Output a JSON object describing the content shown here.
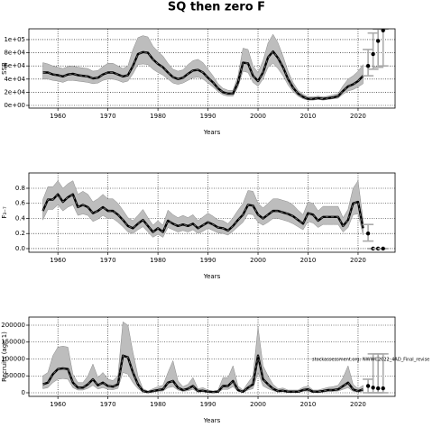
{
  "title": "SQ then zero F",
  "chart_data": [
    {
      "type": "line",
      "ylabel": "SSB",
      "xlabel": "Years",
      "xlim": [
        1954.2,
        2027.4
      ],
      "xticks": [
        1960,
        1970,
        1980,
        1990,
        2000,
        2010,
        2020
      ],
      "ylim": [
        -4100,
        116400
      ],
      "yticks": [
        {
          "value": 0,
          "label": "0e+00"
        },
        {
          "value": 20000,
          "label": "2e+04"
        },
        {
          "value": 40000,
          "label": "4e+04"
        },
        {
          "value": 60000,
          "label": "6e+04"
        },
        {
          "value": 80000,
          "label": "8e+04"
        },
        {
          "value": 100000,
          "label": "1e+05"
        }
      ],
      "grid": true,
      "color": "#000000",
      "band_color": "#bdbdbd",
      "x": [
        1957,
        1958,
        1959,
        1960,
        1961,
        1962,
        1963,
        1964,
        1965,
        1966,
        1967,
        1968,
        1969,
        1970,
        1971,
        1972,
        1973,
        1974,
        1975,
        1976,
        1977,
        1978,
        1979,
        1980,
        1981,
        1982,
        1983,
        1984,
        1985,
        1986,
        1987,
        1988,
        1989,
        1990,
        1991,
        1992,
        1993,
        1994,
        1995,
        1996,
        1997,
        1998,
        1999,
        2000,
        2001,
        2002,
        2003,
        2004,
        2005,
        2006,
        2007,
        2008,
        2009,
        2010,
        2011,
        2012,
        2013,
        2014,
        2015,
        2016,
        2017,
        2018,
        2019,
        2020,
        2021
      ],
      "values": [
        50000,
        50000,
        47000,
        46000,
        44000,
        47000,
        48000,
        46000,
        45000,
        44000,
        41000,
        42000,
        47000,
        50000,
        50000,
        47000,
        44000,
        46000,
        60000,
        78000,
        81000,
        80000,
        70000,
        63000,
        58000,
        50000,
        43000,
        40000,
        42000,
        48000,
        53000,
        54000,
        50000,
        42000,
        35000,
        26000,
        20000,
        18000,
        18000,
        35000,
        65000,
        64000,
        45000,
        37000,
        50000,
        73000,
        82000,
        72000,
        58000,
        40000,
        27000,
        18000,
        13000,
        10000,
        10000,
        11000,
        10000,
        11000,
        12000,
        14000,
        22000,
        29000,
        32000,
        37000,
        45000
      ],
      "lower": [
        40000,
        40000,
        38000,
        37000,
        35000,
        38000,
        38000,
        37000,
        36000,
        35000,
        33000,
        34000,
        38000,
        40000,
        40000,
        38000,
        35000,
        37000,
        48000,
        62000,
        63000,
        62000,
        55000,
        50000,
        46000,
        40000,
        34000,
        32000,
        34000,
        38000,
        42000,
        43000,
        40000,
        34000,
        28000,
        21000,
        16000,
        14000,
        14000,
        28000,
        52000,
        50000,
        35000,
        29000,
        40000,
        58000,
        64000,
        56000,
        45000,
        31000,
        21000,
        14000,
        10000,
        8000,
        8000,
        9000,
        8000,
        9000,
        10000,
        11000,
        17000,
        22000,
        24000,
        28000,
        33000
      ],
      "upper": [
        65000,
        63000,
        60000,
        58000,
        56000,
        59000,
        60000,
        58000,
        57000,
        56000,
        52000,
        53000,
        59000,
        64000,
        64000,
        60000,
        56000,
        60000,
        85000,
        103000,
        106000,
        104000,
        90000,
        82000,
        75000,
        64000,
        55000,
        52000,
        54000,
        62000,
        68000,
        70000,
        65000,
        55000,
        45000,
        33000,
        26000,
        23000,
        23000,
        45000,
        87000,
        85000,
        60000,
        50000,
        68000,
        95000,
        108000,
        95000,
        75000,
        52000,
        35000,
        23000,
        17000,
        13000,
        13000,
        14000,
        13000,
        14000,
        16000,
        18000,
        30000,
        40000,
        45000,
        52000,
        62000
      ],
      "projection": {
        "x": [
          2022,
          2023,
          2024,
          2025
        ],
        "values": [
          60000,
          78000,
          98000,
          114000
        ],
        "lower": [
          45000,
          55000,
          58000,
          60000
        ],
        "upper": [
          85000,
          110000,
          116000,
          116000
        ]
      }
    },
    {
      "type": "line",
      "ylabel": "F₃₋₇",
      "xlabel": "Years",
      "xlim": [
        1954.2,
        2027.4
      ],
      "xticks": [
        1960,
        1970,
        1980,
        1990,
        2000,
        2010,
        2020
      ],
      "ylim": [
        -0.048,
        1.003
      ],
      "yticks": [
        {
          "value": 0,
          "label": "0.0"
        },
        0.2,
        0.4,
        0.6,
        0.8
      ],
      "grid": true,
      "color": "#000000",
      "band_color": "#bdbdbd",
      "x": [
        1957,
        1958,
        1959,
        1960,
        1961,
        1962,
        1963,
        1964,
        1965,
        1966,
        1967,
        1968,
        1969,
        1970,
        1971,
        1972,
        1973,
        1974,
        1975,
        1976,
        1977,
        1978,
        1979,
        1980,
        1981,
        1982,
        1983,
        1984,
        1985,
        1986,
        1987,
        1988,
        1989,
        1990,
        1991,
        1992,
        1993,
        1994,
        1995,
        1996,
        1997,
        1998,
        1999,
        2000,
        2001,
        2002,
        2003,
        2004,
        2005,
        2006,
        2007,
        2008,
        2009,
        2010,
        2011,
        2012,
        2013,
        2014,
        2015,
        2016,
        2017,
        2018,
        2019,
        2020,
        2021
      ],
      "values": [
        0.5,
        0.65,
        0.65,
        0.72,
        0.62,
        0.68,
        0.72,
        0.55,
        0.58,
        0.55,
        0.47,
        0.5,
        0.55,
        0.5,
        0.5,
        0.45,
        0.38,
        0.3,
        0.27,
        0.33,
        0.38,
        0.3,
        0.22,
        0.27,
        0.22,
        0.37,
        0.33,
        0.3,
        0.32,
        0.3,
        0.33,
        0.27,
        0.31,
        0.35,
        0.32,
        0.28,
        0.27,
        0.24,
        0.3,
        0.38,
        0.45,
        0.58,
        0.57,
        0.45,
        0.4,
        0.45,
        0.5,
        0.5,
        0.48,
        0.46,
        0.43,
        0.38,
        0.33,
        0.47,
        0.45,
        0.37,
        0.42,
        0.42,
        0.42,
        0.42,
        0.3,
        0.38,
        0.6,
        0.62,
        0.27
      ],
      "lower": [
        0.38,
        0.52,
        0.52,
        0.58,
        0.5,
        0.55,
        0.58,
        0.44,
        0.46,
        0.44,
        0.36,
        0.39,
        0.44,
        0.4,
        0.4,
        0.35,
        0.29,
        0.22,
        0.2,
        0.25,
        0.29,
        0.22,
        0.15,
        0.19,
        0.15,
        0.28,
        0.25,
        0.22,
        0.24,
        0.22,
        0.25,
        0.2,
        0.23,
        0.27,
        0.24,
        0.21,
        0.2,
        0.18,
        0.23,
        0.29,
        0.35,
        0.46,
        0.45,
        0.35,
        0.31,
        0.35,
        0.4,
        0.4,
        0.38,
        0.36,
        0.33,
        0.29,
        0.25,
        0.36,
        0.34,
        0.28,
        0.32,
        0.32,
        0.32,
        0.32,
        0.22,
        0.28,
        0.45,
        0.46,
        0.18
      ],
      "upper": [
        0.65,
        0.82,
        0.82,
        0.9,
        0.8,
        0.86,
        0.9,
        0.72,
        0.76,
        0.72,
        0.62,
        0.66,
        0.72,
        0.66,
        0.66,
        0.6,
        0.51,
        0.41,
        0.37,
        0.44,
        0.52,
        0.41,
        0.31,
        0.37,
        0.31,
        0.51,
        0.45,
        0.41,
        0.44,
        0.41,
        0.45,
        0.37,
        0.42,
        0.47,
        0.43,
        0.38,
        0.37,
        0.33,
        0.41,
        0.51,
        0.6,
        0.77,
        0.76,
        0.6,
        0.54,
        0.6,
        0.66,
        0.66,
        0.64,
        0.62,
        0.58,
        0.51,
        0.45,
        0.62,
        0.6,
        0.5,
        0.56,
        0.56,
        0.56,
        0.56,
        0.41,
        0.52,
        0.8,
        0.9,
        0.38
      ],
      "projection": {
        "x": [
          2022,
          2023,
          2024,
          2025
        ],
        "values": [
          0.2,
          0,
          0,
          0
        ],
        "lower": [
          0.1,
          0,
          0,
          0
        ],
        "upper": [
          0.32,
          0,
          0,
          0
        ]
      }
    },
    {
      "type": "line",
      "ylabel": "Recruits (age 1)",
      "xlabel": "Years",
      "annotation": "stockassessment.org: NWWC2022_4AD_Final_revise",
      "xlim": [
        1954.2,
        2027.4
      ],
      "xticks": [
        1960,
        1970,
        1980,
        1990,
        2000,
        2010,
        2020
      ],
      "ylim": [
        -10700,
        224000
      ],
      "yticks": [
        0,
        50000,
        100000,
        150000,
        200000
      ],
      "grid": true,
      "color": "#000000",
      "band_color": "#bdbdbd",
      "x": [
        1957,
        1958,
        1959,
        1960,
        1961,
        1962,
        1963,
        1964,
        1965,
        1966,
        1967,
        1968,
        1969,
        1970,
        1971,
        1972,
        1973,
        1974,
        1975,
        1976,
        1977,
        1978,
        1979,
        1980,
        1981,
        1982,
        1983,
        1984,
        1985,
        1986,
        1987,
        1988,
        1989,
        1990,
        1991,
        1992,
        1993,
        1994,
        1995,
        1996,
        1997,
        1998,
        1999,
        2000,
        2001,
        2002,
        2003,
        2004,
        2005,
        2006,
        2007,
        2008,
        2009,
        2010,
        2011,
        2012,
        2013,
        2014,
        2015,
        2016,
        2017,
        2018,
        2019,
        2020,
        2021
      ],
      "values": [
        25000,
        30000,
        55000,
        70000,
        72000,
        70000,
        30000,
        15000,
        15000,
        25000,
        40000,
        22000,
        30000,
        20000,
        18000,
        25000,
        110000,
        105000,
        60000,
        25000,
        5000,
        2000,
        5000,
        8000,
        10000,
        30000,
        35000,
        15000,
        8000,
        12000,
        20000,
        5000,
        6000,
        3000,
        2000,
        3000,
        20000,
        20000,
        35000,
        8000,
        3000,
        15000,
        25000,
        110000,
        40000,
        25000,
        12000,
        5000,
        6000,
        3000,
        3000,
        3000,
        8000,
        10000,
        3000,
        3000,
        5000,
        8000,
        8000,
        10000,
        20000,
        30000,
        10000,
        5000,
        10000
      ],
      "lower": [
        12000,
        15000,
        30000,
        40000,
        42000,
        40000,
        15000,
        8000,
        8000,
        13000,
        22000,
        11000,
        15000,
        10000,
        9000,
        13000,
        60000,
        55000,
        30000,
        12000,
        2000,
        1000,
        2000,
        4000,
        5000,
        15000,
        18000,
        8000,
        4000,
        6000,
        10000,
        2000,
        3000,
        1000,
        1000,
        1000,
        10000,
        10000,
        18000,
        4000,
        1000,
        8000,
        12000,
        60000,
        20000,
        12000,
        6000,
        2000,
        3000,
        1000,
        1000,
        1000,
        4000,
        5000,
        1000,
        1000,
        2000,
        4000,
        4000,
        5000,
        10000,
        15000,
        4000,
        2000,
        3000
      ],
      "upper": [
        50000,
        60000,
        110000,
        135000,
        138000,
        135000,
        55000,
        30000,
        30000,
        50000,
        85000,
        45000,
        60000,
        40000,
        36000,
        50000,
        210000,
        200000,
        120000,
        50000,
        12000,
        5000,
        12000,
        18000,
        22000,
        60000,
        95000,
        35000,
        18000,
        25000,
        45000,
        12000,
        15000,
        8000,
        5000,
        8000,
        45000,
        45000,
        80000,
        20000,
        8000,
        30000,
        50000,
        195000,
        80000,
        50000,
        25000,
        12000,
        14000,
        8000,
        8000,
        8000,
        16000,
        20000,
        8000,
        8000,
        12000,
        16000,
        18000,
        22000,
        45000,
        80000,
        25000,
        12000,
        22000
      ],
      "projection": {
        "x": [
          2022,
          2023,
          2024,
          2025
        ],
        "values": [
          20000,
          15000,
          13000,
          13000
        ],
        "lower": [
          0,
          0,
          0,
          0
        ],
        "upper": [
          40000,
          115000,
          115000,
          115000
        ]
      }
    }
  ]
}
